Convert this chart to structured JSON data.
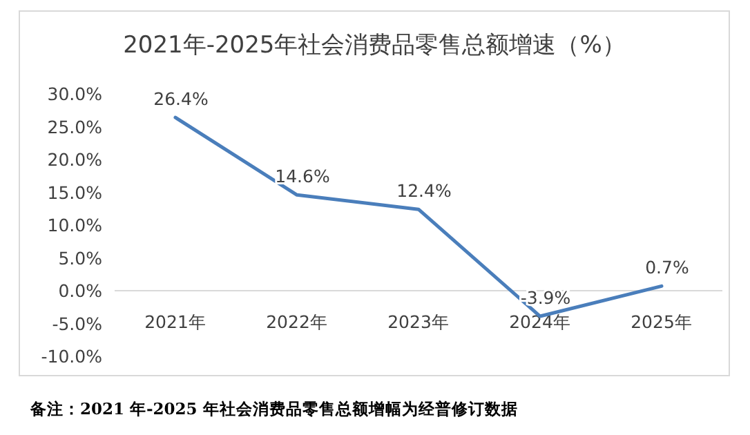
{
  "chart_data": {
    "type": "line",
    "title": "2021年-2025年社会消费品零售总额增速（%）",
    "categories": [
      "2021年",
      "2022年",
      "2023年",
      "2024年",
      "2025年"
    ],
    "series": [
      {
        "color": "#4a7ebb",
        "values": [
          26.4,
          14.6,
          12.4,
          -3.9,
          0.7
        ],
        "value_labels": [
          "26.4%",
          "14.6%",
          "12.4%",
          "-3.9%",
          "0.7%"
        ]
      }
    ],
    "ylim": [
      -10,
      30
    ],
    "yticks": [
      {
        "value": -10,
        "label": "-10.0%"
      },
      {
        "value": -5,
        "label": "-5.0%"
      },
      {
        "value": 0,
        "label": "0.0%"
      },
      {
        "value": 5,
        "label": "5.0%"
      },
      {
        "value": 10,
        "label": "10.0%"
      },
      {
        "value": 15,
        "label": "15.0%"
      },
      {
        "value": 20,
        "label": "20.0%"
      },
      {
        "value": 25,
        "label": "25.0%"
      },
      {
        "value": 30,
        "label": "30.0%"
      }
    ],
    "annotations": [
      "备注：2021 年-2025 年社会消费品零售总额增幅为经普修订数据"
    ]
  }
}
